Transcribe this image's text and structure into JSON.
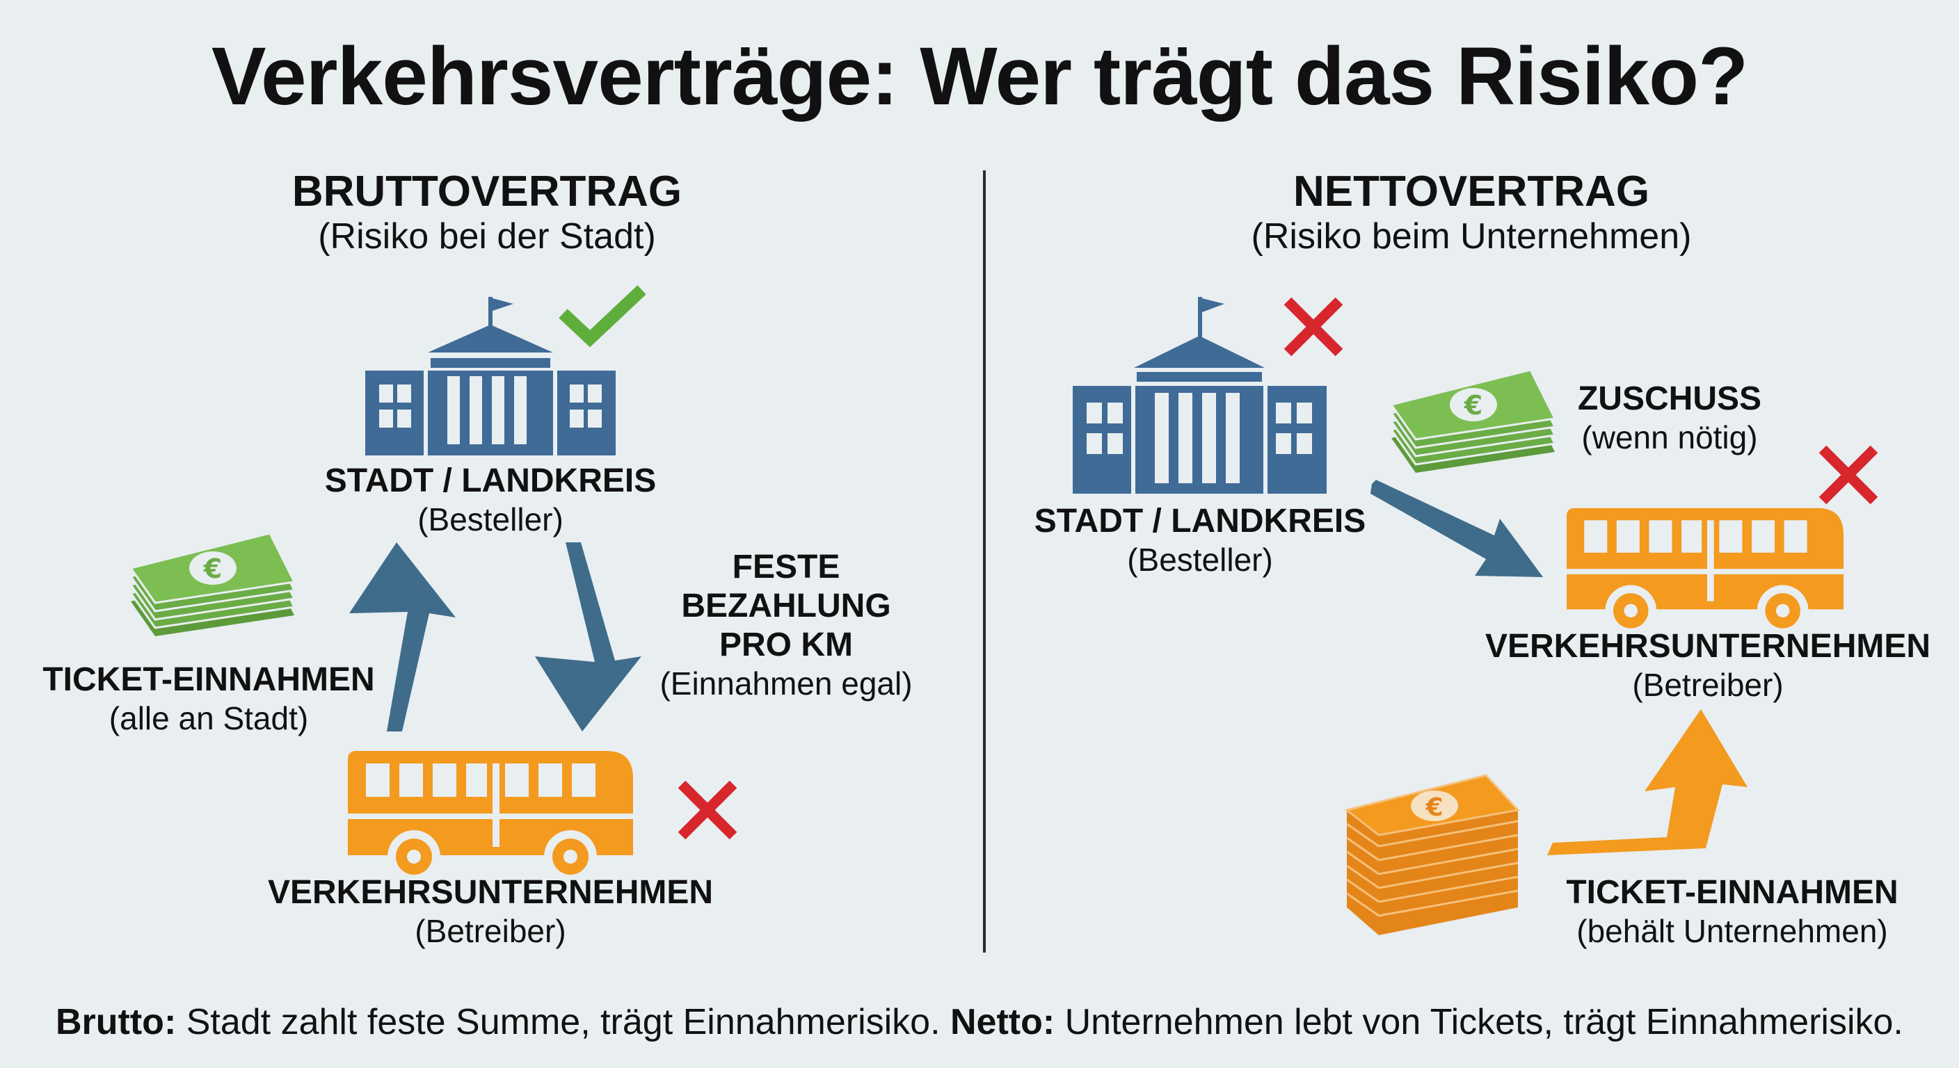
{
  "title": "Verkehrsverträge: Wer trägt das Risiko?",
  "colors": {
    "building": "#3f6b96",
    "bus": "#f39a1f",
    "money": "#6bac45",
    "arrow": "#3f6c8b",
    "check": "#5fae3c",
    "cross": "#d7262c",
    "divider": "#2c2c2c"
  },
  "left": {
    "heading": "BRUTTOVERTRAG",
    "subheading": "(Risiko bei der Stadt)",
    "city_name": "STADT / LANDKREIS",
    "city_role": "(Besteller)",
    "city_status_icon": "check-icon",
    "operator_name": "VERKEHRSUNTERNEHMEN",
    "operator_role": "(Betreiber)",
    "operator_status_icon": "cross-icon",
    "ticket_label": "TICKET-EINNAHMEN",
    "ticket_note": "(alle an Stadt)",
    "payment_line1": "FESTE",
    "payment_line2": "BEZAHLUNG",
    "payment_line3": "PRO KM",
    "payment_note": "(Einnahmen egal)"
  },
  "right": {
    "heading": "NETTOVERTRAG",
    "subheading": "(Risiko beim Unternehmen)",
    "city_name": "STADT / LANDKREIS",
    "city_role": "(Besteller)",
    "city_status_icon": "cross-icon",
    "subsidy_label": "ZUSCHUSS",
    "subsidy_note": "(wenn nötig)",
    "operator_name": "VERKEHRSUNTERNEHMEN",
    "operator_role": "(Betreiber)",
    "operator_status_icon": "cross-icon",
    "ticket_label": "TICKET-EINNAHMEN",
    "ticket_note": "(behält Unternehmen)"
  },
  "footer": {
    "brutto_label": "Brutto:",
    "brutto_text": " Stadt zahlt feste Summe, trägt Einnahmerisiko. ",
    "netto_label": "Netto:",
    "netto_text": " Unternehmen lebt von Tickets, trägt Einnahmerisiko."
  }
}
